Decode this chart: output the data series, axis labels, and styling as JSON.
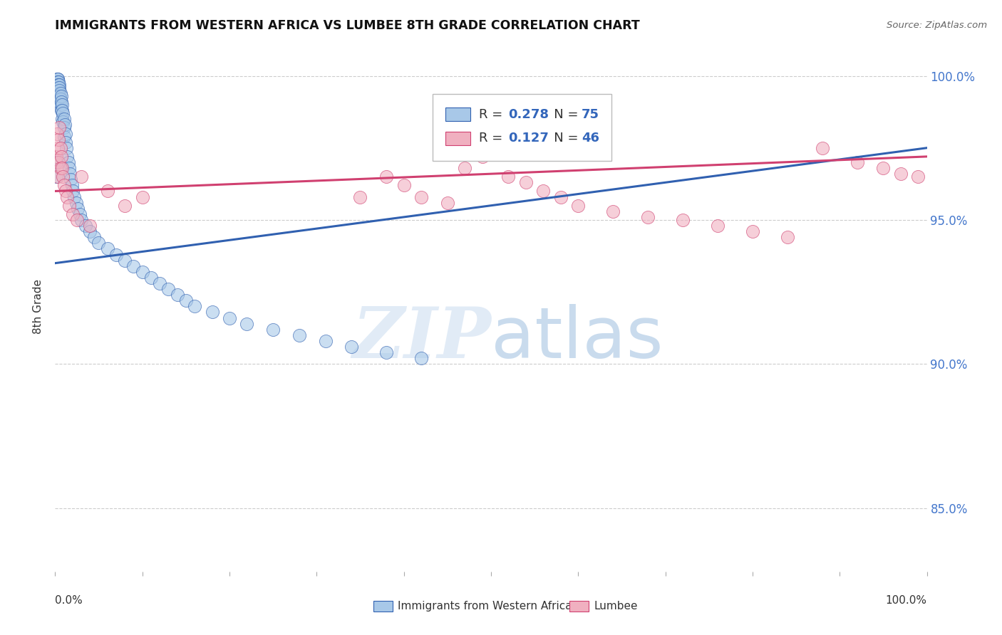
{
  "title": "IMMIGRANTS FROM WESTERN AFRICA VS LUMBEE 8TH GRADE CORRELATION CHART",
  "source": "Source: ZipAtlas.com",
  "ylabel": "8th Grade",
  "ytick_values": [
    0.85,
    0.9,
    0.95,
    1.0
  ],
  "xlim": [
    0.0,
    1.0
  ],
  "ylim": [
    0.828,
    1.012
  ],
  "legend_blue_r": "0.278",
  "legend_blue_n": "75",
  "legend_pink_r": "0.127",
  "legend_pink_n": "46",
  "legend_label_blue": "Immigrants from Western Africa",
  "legend_label_pink": "Lumbee",
  "blue_scatter_color": "#a8c8e8",
  "pink_scatter_color": "#f0b0c0",
  "blue_line_color": "#3060b0",
  "pink_line_color": "#d04070",
  "blue_edge_color": "#3060b0",
  "pink_edge_color": "#d04070",
  "watermark_color": "#dce8f5",
  "background_color": "#ffffff",
  "grid_color": "#cccccc",
  "blue_line_start_y": 0.935,
  "blue_line_end_y": 0.975,
  "pink_line_start_y": 0.96,
  "pink_line_end_y": 0.972,
  "blue_points_x": [
    0.001,
    0.001,
    0.002,
    0.002,
    0.002,
    0.002,
    0.003,
    0.003,
    0.003,
    0.003,
    0.003,
    0.004,
    0.004,
    0.004,
    0.004,
    0.004,
    0.005,
    0.005,
    0.005,
    0.005,
    0.005,
    0.006,
    0.006,
    0.006,
    0.007,
    0.007,
    0.007,
    0.008,
    0.008,
    0.008,
    0.009,
    0.009,
    0.01,
    0.01,
    0.01,
    0.011,
    0.012,
    0.012,
    0.013,
    0.014,
    0.015,
    0.016,
    0.017,
    0.018,
    0.019,
    0.02,
    0.022,
    0.024,
    0.026,
    0.028,
    0.03,
    0.035,
    0.04,
    0.045,
    0.05,
    0.06,
    0.07,
    0.08,
    0.09,
    0.1,
    0.11,
    0.12,
    0.13,
    0.14,
    0.15,
    0.16,
    0.18,
    0.2,
    0.22,
    0.25,
    0.28,
    0.31,
    0.34,
    0.38,
    0.42
  ],
  "blue_points_y": [
    0.97,
    0.965,
    0.999,
    0.998,
    0.997,
    0.996,
    0.999,
    0.999,
    0.998,
    0.997,
    0.996,
    0.998,
    0.997,
    0.996,
    0.994,
    0.992,
    0.997,
    0.996,
    0.995,
    0.993,
    0.991,
    0.994,
    0.992,
    0.99,
    0.993,
    0.991,
    0.988,
    0.99,
    0.988,
    0.985,
    0.987,
    0.984,
    0.985,
    0.982,
    0.979,
    0.983,
    0.98,
    0.977,
    0.975,
    0.972,
    0.97,
    0.968,
    0.966,
    0.964,
    0.962,
    0.96,
    0.958,
    0.956,
    0.954,
    0.952,
    0.95,
    0.948,
    0.946,
    0.944,
    0.942,
    0.94,
    0.938,
    0.936,
    0.934,
    0.932,
    0.93,
    0.928,
    0.926,
    0.924,
    0.922,
    0.92,
    0.918,
    0.916,
    0.914,
    0.912,
    0.91,
    0.908,
    0.906,
    0.904,
    0.902
  ],
  "pink_points_x": [
    0.001,
    0.002,
    0.003,
    0.003,
    0.004,
    0.004,
    0.005,
    0.006,
    0.006,
    0.007,
    0.008,
    0.009,
    0.01,
    0.012,
    0.014,
    0.016,
    0.02,
    0.025,
    0.03,
    0.04,
    0.06,
    0.08,
    0.1,
    0.35,
    0.38,
    0.4,
    0.42,
    0.45,
    0.47,
    0.49,
    0.52,
    0.54,
    0.56,
    0.58,
    0.6,
    0.64,
    0.68,
    0.72,
    0.76,
    0.8,
    0.84,
    0.88,
    0.92,
    0.95,
    0.97,
    0.99
  ],
  "pink_points_y": [
    0.972,
    0.98,
    0.975,
    0.965,
    0.978,
    0.97,
    0.982,
    0.975,
    0.968,
    0.972,
    0.968,
    0.965,
    0.962,
    0.96,
    0.958,
    0.955,
    0.952,
    0.95,
    0.965,
    0.948,
    0.96,
    0.955,
    0.958,
    0.958,
    0.965,
    0.962,
    0.958,
    0.956,
    0.968,
    0.972,
    0.965,
    0.963,
    0.96,
    0.958,
    0.955,
    0.953,
    0.951,
    0.95,
    0.948,
    0.946,
    0.944,
    0.975,
    0.97,
    0.968,
    0.966,
    0.965
  ]
}
